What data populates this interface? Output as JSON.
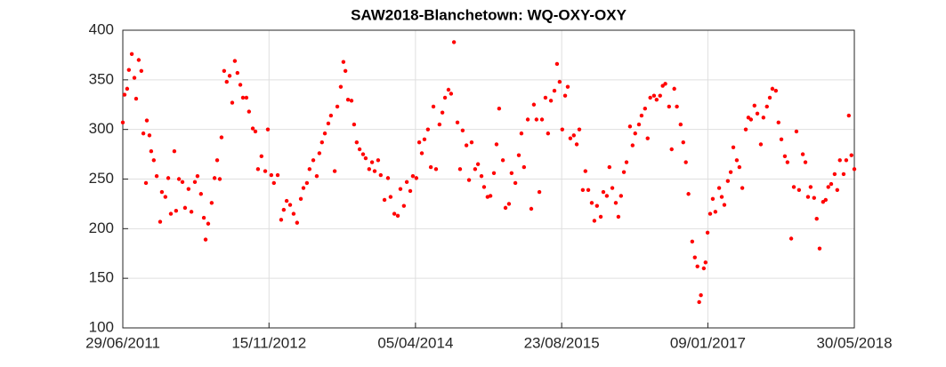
{
  "chart_data": {
    "type": "scatter",
    "title": "SAW2018-Blanchetown: WQ-OXY-OXY",
    "color": "#ff0000",
    "grid": true,
    "xlim": [
      "29/06/2011",
      "30/05/2018"
    ],
    "xticks": [
      "29/06/2011",
      "15/11/2012",
      "05/04/2014",
      "23/08/2015",
      "09/01/2017",
      "30/05/2018"
    ],
    "ylim": [
      100,
      400
    ],
    "yticks": [
      100,
      150,
      200,
      250,
      300,
      350,
      400
    ],
    "x": [
      "29/06/2011",
      "05/07/2011",
      "14/07/2011",
      "20/07/2011",
      "30/07/2011",
      "08/08/2011",
      "14/08/2011",
      "23/08/2011",
      "01/09/2011",
      "08/09/2011",
      "17/09/2011",
      "20/09/2011",
      "29/09/2011",
      "05/10/2011",
      "14/10/2011",
      "24/10/2011",
      "05/11/2011",
      "11/11/2011",
      "23/11/2011",
      "03/12/2011",
      "12/12/2011",
      "24/12/2011",
      "30/12/2011",
      "09/01/2012",
      "21/01/2012",
      "30/01/2012",
      "11/02/2012",
      "21/02/2012",
      "04/03/2012",
      "13/03/2012",
      "25/03/2012",
      "04/04/2012",
      "10/04/2012",
      "19/04/2012",
      "01/05/2012",
      "11/05/2012",
      "20/05/2012",
      "29/05/2012",
      "04/06/2012",
      "13/06/2012",
      "22/06/2012",
      "02/07/2012",
      "11/07/2012",
      "20/07/2012",
      "29/07/2012",
      "08/08/2012",
      "17/08/2012",
      "29/08/2012",
      "07/09/2012",
      "20/09/2012",
      "29/09/2012",
      "08/10/2012",
      "20/10/2012",
      "02/11/2012",
      "11/11/2012",
      "23/11/2012",
      "02/12/2012",
      "15/12/2012",
      "27/12/2012",
      "05/01/2013",
      "15/01/2013",
      "27/01/2013",
      "08/02/2013",
      "20/02/2013",
      "05/03/2013",
      "14/03/2013",
      "26/03/2013",
      "04/04/2013",
      "17/04/2013",
      "29/04/2013",
      "08/05/2013",
      "17/05/2013",
      "27/05/2013",
      "08/06/2013",
      "17/06/2013",
      "30/06/2013",
      "09/07/2013",
      "21/07/2013",
      "30/07/2013",
      "06/08/2013",
      "15/08/2013",
      "27/08/2013",
      "05/09/2013",
      "14/09/2013",
      "24/09/2013",
      "06/10/2013",
      "15/10/2013",
      "27/10/2013",
      "06/11/2013",
      "15/11/2013",
      "27/11/2013",
      "06/12/2013",
      "19/12/2013",
      "31/12/2013",
      "09/01/2014",
      "22/01/2014",
      "03/02/2014",
      "12/02/2014",
      "24/02/2014",
      "06/03/2014",
      "18/03/2014",
      "27/03/2014",
      "08/04/2014",
      "18/04/2014",
      "27/04/2014",
      "06/05/2014",
      "18/05/2014",
      "28/05/2014",
      "06/06/2014",
      "15/06/2014",
      "27/06/2014",
      "07/07/2014",
      "16/07/2014",
      "28/07/2014",
      "06/08/2014",
      "16/08/2014",
      "28/08/2014",
      "06/09/2014",
      "15/09/2014",
      "28/09/2014",
      "07/10/2014",
      "16/10/2014",
      "28/10/2014",
      "07/11/2014",
      "19/11/2014",
      "28/11/2014",
      "10/12/2014",
      "20/12/2014",
      "01/01/2015",
      "10/01/2015",
      "19/01/2015",
      "01/02/2015",
      "10/02/2015",
      "22/02/2015",
      "03/03/2015",
      "16/03/2015",
      "28/03/2015",
      "06/04/2015",
      "15/04/2015",
      "28/04/2015",
      "10/05/2015",
      "19/05/2015",
      "28/05/2015",
      "07/06/2015",
      "16/06/2015",
      "28/06/2015",
      "07/07/2015",
      "17/07/2015",
      "29/07/2015",
      "07/08/2015",
      "16/08/2015",
      "25/08/2015",
      "04/09/2015",
      "13/09/2015",
      "22/09/2015",
      "04/10/2015",
      "14/10/2015",
      "23/10/2015",
      "04/11/2015",
      "13/11/2015",
      "23/11/2015",
      "05/12/2015",
      "14/12/2015",
      "23/12/2015",
      "05/01/2016",
      "14/01/2016",
      "26/01/2016",
      "04/02/2016",
      "14/02/2016",
      "26/02/2016",
      "06/03/2016",
      "15/03/2016",
      "25/03/2016",
      "03/04/2016",
      "15/04/2016",
      "24/04/2016",
      "03/05/2016",
      "16/05/2016",
      "25/05/2016",
      "06/06/2016",
      "15/06/2016",
      "24/06/2016",
      "07/07/2016",
      "16/07/2016",
      "28/07/2016",
      "06/08/2016",
      "15/08/2016",
      "28/08/2016",
      "06/09/2016",
      "15/09/2016",
      "24/09/2016",
      "07/10/2016",
      "16/10/2016",
      "25/10/2016",
      "03/11/2016",
      "16/11/2016",
      "25/11/2016",
      "04/12/2016",
      "10/12/2016",
      "16/12/2016",
      "26/12/2016",
      "01/01/2017",
      "08/01/2017",
      "17/01/2017",
      "26/01/2017",
      "04/02/2017",
      "17/02/2017",
      "26/02/2017",
      "07/03/2017",
      "19/03/2017",
      "29/03/2017",
      "07/04/2017",
      "19/04/2017",
      "28/04/2017",
      "08/05/2017",
      "20/05/2017",
      "29/05/2017",
      "07/06/2017",
      "19/06/2017",
      "29/06/2017",
      "11/07/2017",
      "20/07/2017",
      "01/08/2017",
      "11/08/2017",
      "20/08/2017",
      "01/09/2017",
      "10/09/2017",
      "20/09/2017",
      "02/10/2017",
      "11/10/2017",
      "24/10/2017",
      "02/11/2017",
      "11/11/2017",
      "20/11/2017",
      "03/12/2017",
      "12/12/2017",
      "21/12/2017",
      "30/12/2017",
      "11/01/2018",
      "20/01/2018",
      "30/01/2018",
      "11/02/2018",
      "20/02/2018",
      "01/03/2018",
      "11/03/2018",
      "23/03/2018",
      "01/04/2018",
      "10/04/2018",
      "23/04/2018",
      "02/05/2018",
      "11/05/2018",
      "20/05/2018",
      "30/05/2018"
    ],
    "values": [
      307,
      335,
      341,
      360,
      376,
      352,
      331,
      370,
      359,
      296,
      246,
      309,
      294,
      278,
      269,
      253,
      207,
      237,
      232,
      251,
      215,
      278,
      218,
      250,
      247,
      221,
      240,
      217,
      247,
      253,
      235,
      211,
      189,
      205,
      226,
      251,
      269,
      250,
      292,
      359,
      348,
      354,
      327,
      369,
      357,
      345,
      332,
      332,
      318,
      301,
      298,
      260,
      273,
      258,
      300,
      254,
      246,
      254,
      209,
      219,
      228,
      224,
      215,
      206,
      230,
      241,
      246,
      260,
      269,
      253,
      276,
      287,
      296,
      306,
      314,
      258,
      323,
      343,
      368,
      359,
      330,
      329,
      305,
      287,
      280,
      275,
      271,
      260,
      267,
      258,
      269,
      254,
      229,
      251,
      232,
      215,
      213,
      240,
      223,
      247,
      238,
      253,
      251,
      287,
      276,
      290,
      300,
      262,
      323,
      260,
      305,
      317,
      332,
      340,
      336,
      388,
      307,
      260,
      299,
      284,
      249,
      287,
      260,
      265,
      253,
      242,
      232,
      233,
      256,
      285,
      321,
      269,
      221,
      225,
      256,
      246,
      274,
      296,
      262,
      310,
      220,
      325,
      310,
      237,
      310,
      332,
      296,
      329,
      339,
      366,
      348,
      300,
      334,
      343,
      291,
      294,
      285,
      300,
      239,
      258,
      239,
      226,
      208,
      223,
      212,
      237,
      233,
      262,
      241,
      226,
      212,
      233,
      257,
      267,
      303,
      284,
      296,
      305,
      314,
      321,
      291,
      332,
      334,
      330,
      334,
      344,
      346,
      323,
      280,
      341,
      323,
      305,
      287,
      267,
      235,
      187,
      171,
      162,
      126,
      133,
      160,
      166,
      196,
      215,
      230,
      217,
      241,
      232,
      224,
      248,
      257,
      282,
      269,
      262,
      241,
      300,
      312,
      310,
      324,
      316,
      285,
      312,
      323,
      332,
      341,
      339,
      307,
      290,
      273,
      267,
      190,
      242,
      298,
      239,
      275,
      267,
      232,
      242,
      231,
      210,
      180,
      227,
      229,
      242,
      245,
      255,
      239,
      269,
      255,
      269,
      314,
      274,
      260
    ]
  }
}
